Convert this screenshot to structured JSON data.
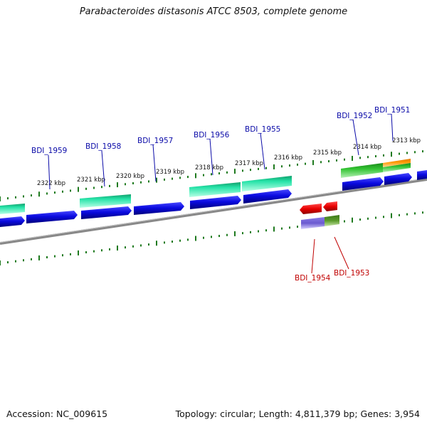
{
  "title": "Parabacteroides distasonis ATCC 8503, complete genome",
  "footer": {
    "accession": "Accession: NC_009615",
    "stats": "Topology: circular; Length: 4,811,379 bp; Genes: 3,954"
  },
  "kbp_labels": [
    "2322 kbp",
    "2321 kbp",
    "2320 kbp",
    "2319 kbp",
    "2318 kbp",
    "2317 kbp",
    "2316 kbp",
    "2315 kbp",
    "2314 kbp",
    "2313 kbp"
  ],
  "gene_labels_top": [
    "BDI_1959",
    "BDI_1958",
    "BDI_1957",
    "BDI_1956",
    "BDI_1955",
    "BDI_1952",
    "BDI_1951"
  ],
  "gene_labels_bottom": [
    "BDI_1954",
    "BDI_1953"
  ],
  "colors": {
    "cds_blue": "#0a0ae0",
    "gene_cyan": "#26e3a8",
    "gene_green": "#2db82d",
    "gene_orange": "#ff9900",
    "rna_red": "#e80000",
    "purple": "#6a5ad0",
    "olive": "#5a9a2a",
    "backbone": "#888888",
    "tick_green": "#1f7a1f",
    "label_blue": "#0a0aa8",
    "label_red": "#c00000"
  }
}
